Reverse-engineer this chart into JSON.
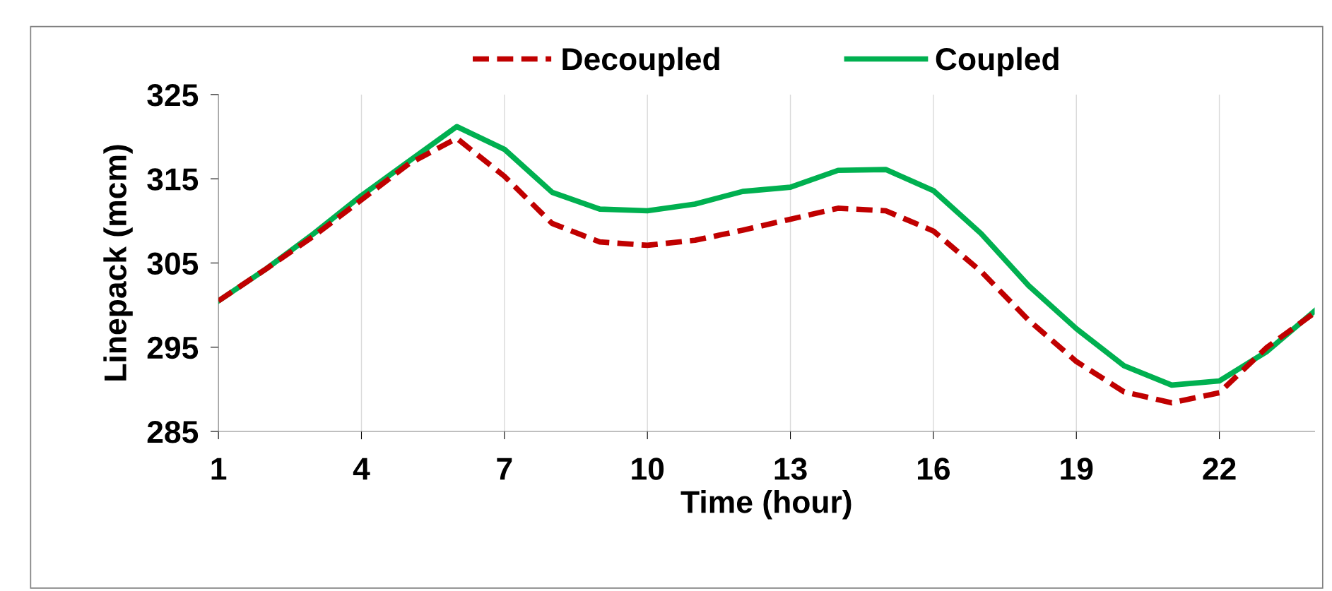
{
  "chart_data": {
    "type": "line",
    "xlabel": "Time (hour)",
    "ylabel": "Linepack (mcm)",
    "x": [
      1,
      2,
      3,
      4,
      5,
      6,
      7,
      8,
      9,
      10,
      11,
      12,
      13,
      14,
      15,
      16,
      17,
      18,
      19,
      20,
      21,
      22,
      23,
      24
    ],
    "series": [
      {
        "name": "Decoupled",
        "color": "#c00000",
        "line_style": "dashed",
        "values": [
          300.5,
          304.3,
          308.2,
          312.5,
          316.8,
          319.8,
          315.3,
          309.7,
          307.5,
          307.1,
          307.7,
          308.9,
          310.2,
          311.5,
          311.2,
          308.8,
          304.0,
          298.2,
          293.3,
          289.7,
          288.4,
          289.6,
          295.0,
          299.1
        ]
      },
      {
        "name": "Coupled",
        "color": "#00b050",
        "line_style": "solid",
        "values": [
          300.5,
          304.3,
          308.5,
          313.0,
          317.1,
          321.2,
          318.5,
          313.4,
          311.4,
          311.2,
          312.0,
          313.5,
          314.0,
          316.0,
          316.1,
          313.6,
          308.5,
          302.3,
          297.2,
          292.8,
          290.5,
          291.0,
          294.5,
          299.3
        ]
      }
    ],
    "xlim": [
      1,
      24
    ],
    "xticks": [
      1,
      4,
      7,
      10,
      13,
      16,
      19,
      22
    ],
    "ylim": [
      285,
      325
    ],
    "yticks": [
      285,
      295,
      305,
      315,
      325
    ],
    "grid": "x",
    "legend": "top",
    "marker": "none"
  }
}
